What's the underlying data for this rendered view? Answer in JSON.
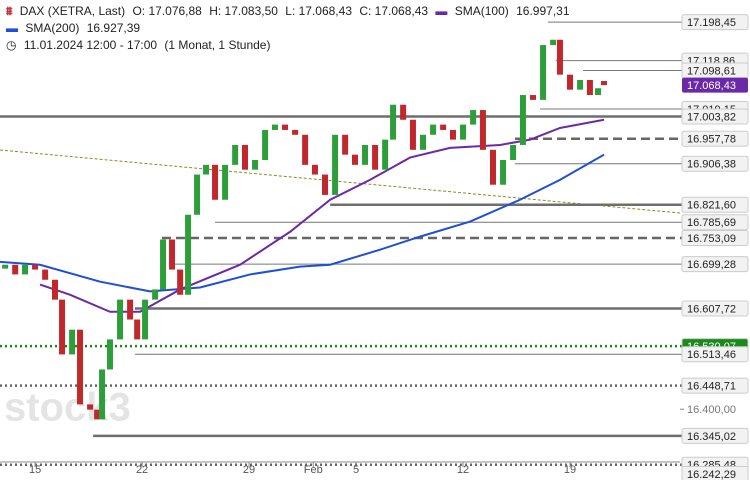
{
  "chart_data": {
    "type": "candlestick",
    "header": {
      "symbol": "DAX (XETRA, Last)",
      "open": "O: 17.076,88",
      "high": "H: 17.083,50",
      "low": "L: 17.068,43",
      "close": "C: 17.068,43",
      "period": "11.01.2024 12:00 - 17:00",
      "interval": "(1 Monat, 1 Stunde)"
    },
    "watermark": "stock3",
    "xlim": [
      -1.64,
      30.14
    ],
    "ylim": [
      16254,
      17244
    ],
    "xticks": [
      {
        "value": 0,
        "label": "15"
      },
      {
        "value": 5,
        "label": "22"
      },
      {
        "value": 10,
        "label": "29"
      },
      {
        "value": 13,
        "label": "Feb"
      },
      {
        "value": 15,
        "label": "5"
      },
      {
        "value": 20,
        "label": "12"
      },
      {
        "value": 25,
        "label": "19"
      }
    ],
    "up_color": "#2e9e3a",
    "down_color": "#c0282e",
    "x": [
      -1.4,
      -0.93,
      -0.47,
      0,
      0.47,
      0.93,
      1.26,
      1.73,
      2.1,
      2.57,
      2.9,
      3.13,
      3.5,
      3.97,
      4.44,
      4.77,
      5.14,
      5.61,
      5.98,
      6.4,
      6.78,
      7.15,
      7.57,
      7.99,
      8.41,
      8.88,
      9.35,
      9.81,
      10.28,
      10.75,
      11.21,
      11.68,
      12.15,
      12.62,
      13.08,
      13.55,
      14.02,
      14.49,
      14.95,
      15.42,
      15.89,
      16.36,
      16.73,
      17.2,
      17.66,
      18.13,
      18.6,
      19.07,
      19.53,
      20.0,
      20.47,
      20.93,
      21.4,
      21.87,
      22.34,
      22.8,
      23.27,
      23.74,
      24.21,
      24.53,
      25.0,
      25.47,
      25.93,
      26.31,
      26.59
    ],
    "open": [
      16690,
      16698,
      16678,
      16698,
      16688,
      16667,
      16626,
      16513,
      16564,
      16410,
      16399,
      16379,
      16482,
      16544,
      16626,
      16585,
      16544,
      16626,
      16647,
      16750,
      16688,
      16636,
      16801,
      16884,
      16904,
      16832,
      16904,
      16945,
      16894,
      16914,
      16976,
      16987,
      16976,
      16966,
      16904,
      16884,
      16842,
      16966,
      16925,
      16904,
      16945,
      16894,
      16956,
      17028,
      16997,
      16935,
      16966,
      16987,
      16976,
      16956,
      16987,
      17017,
      16935,
      16863,
      16914,
      16945,
      17048,
      17038,
      17151,
      17162,
      17090,
      17059,
      17079,
      17048,
      17076.88
    ],
    "close": [
      16698,
      16678,
      16698,
      16688,
      16667,
      16626,
      16513,
      16564,
      16410,
      16399,
      16379,
      16482,
      16544,
      16626,
      16585,
      16544,
      16626,
      16647,
      16750,
      16688,
      16636,
      16801,
      16884,
      16904,
      16832,
      16904,
      16945,
      16894,
      16914,
      16976,
      16987,
      16976,
      16966,
      16904,
      16884,
      16842,
      16966,
      16925,
      16904,
      16945,
      16894,
      16956,
      17028,
      16997,
      16935,
      16966,
      16987,
      16976,
      16956,
      16987,
      17017,
      16935,
      16863,
      16914,
      16945,
      17048,
      17038,
      17151,
      17162,
      17090,
      17059,
      17079,
      17048,
      17062,
      17068.43
    ],
    "series": [
      {
        "name": "SMA(100)",
        "last": "16.997,31",
        "color": "#6a2aa8",
        "x": [
          0.23,
          1.64,
          3.5,
          4.91,
          6.78,
          9.58,
          11.92,
          13.79,
          15.65,
          17.52,
          19.39,
          21.73,
          23.13,
          24.53,
          26.59
        ],
        "values": [
          16657,
          16636,
          16601,
          16601,
          16647,
          16698,
          16766,
          16832,
          16873,
          16919,
          16939,
          16945,
          16956,
          16980,
          16997
        ]
      },
      {
        "name": "SMA(200)",
        "last": "16.927,39",
        "color": "#1f4fd6",
        "x": [
          -1.64,
          0.23,
          3.04,
          5.37,
          7.71,
          10.05,
          12.38,
          13.79,
          16.12,
          17.99,
          20.33,
          22.66,
          24.53,
          26.59
        ],
        "values": [
          16704,
          16698,
          16663,
          16643,
          16651,
          16678,
          16694,
          16698,
          16729,
          16756,
          16787,
          16832,
          16873,
          16925
        ]
      }
    ],
    "levels": [
      {
        "value": 17198.45,
        "label": "17.198,45",
        "style": "solid",
        "start": 23.97
      },
      {
        "value": 17118.86,
        "label": "17.118,86",
        "style": "solid",
        "start": 24.35
      },
      {
        "value": 17098.61,
        "label": "17.098,61",
        "style": "solid",
        "start": 25.61
      },
      {
        "value": 17019.15,
        "label": "17.019,15",
        "style": "solid",
        "start": 23.6
      },
      {
        "value": 17003.82,
        "label": "17.003,82",
        "style": "thick",
        "start": -1.64
      },
      {
        "value": 16957.78,
        "label": "16.957,78",
        "style": "dashed",
        "start": 22.43
      },
      {
        "value": 16906.38,
        "label": "16.906,38",
        "style": "solid",
        "start": 22.43
      },
      {
        "value": 16821.6,
        "label": "16.821,60",
        "style": "thick",
        "start": 13.79
      },
      {
        "value": 16785.69,
        "label": "16.785,69",
        "style": "solid",
        "start": 8.41
      },
      {
        "value": 16753.09,
        "label": "16.753,09",
        "style": "dashed",
        "start": 5.93
      },
      {
        "value": 16699.28,
        "label": "16.699,28",
        "style": "solid",
        "start": 6.54
      },
      {
        "value": 16607.72,
        "label": "16.607,72",
        "style": "thick",
        "start": 4.67
      },
      {
        "value": 16530.07,
        "label": "16.530,07",
        "style": "green",
        "start": -1.64
      },
      {
        "value": 16513.46,
        "label": "16.513,46",
        "style": "solid",
        "start": 4.67
      },
      {
        "value": 16448.71,
        "label": "16.448,71",
        "style": "dotted",
        "start": -1.64
      },
      {
        "value": 16400.0,
        "label": "16.400,00",
        "style": "axis",
        "start": 30.14
      },
      {
        "value": 16345.02,
        "label": "16.345,02",
        "style": "thick",
        "start": 2.71
      },
      {
        "value": 16285.48,
        "label": "16.285,48",
        "style": "dotted",
        "start": -1.64
      },
      {
        "value": 16242.29,
        "label": "16.242,29",
        "style": "dashed",
        "start": -1.64
      },
      {
        "value": 17068.43,
        "label": "17.068,43",
        "style": "current",
        "start": 30.14
      }
    ]
  }
}
